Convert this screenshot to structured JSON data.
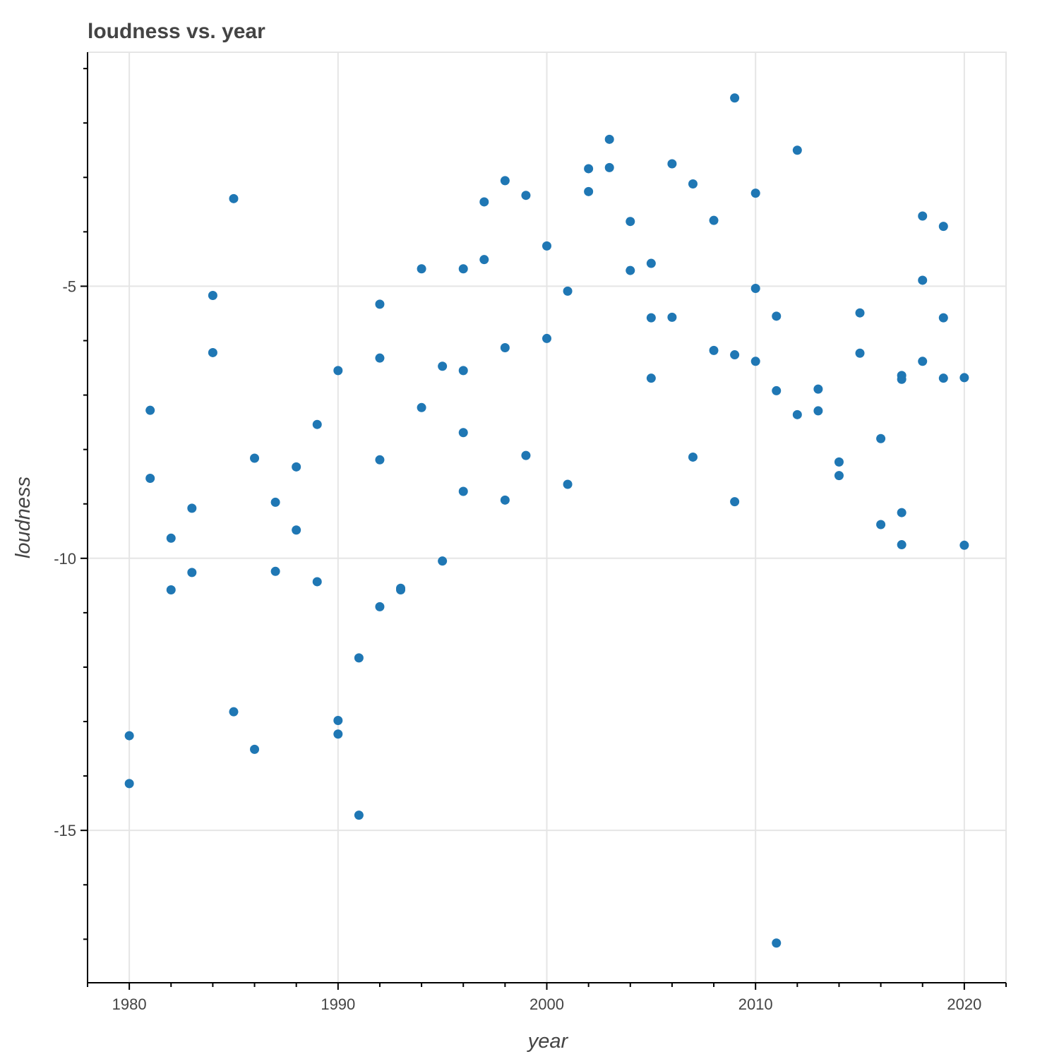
{
  "chart_data": {
    "type": "scatter",
    "title": "loudness vs. year",
    "xlabel": "year",
    "ylabel": "loudness",
    "xlim": [
      1978,
      2022
    ],
    "ylim": [
      -17.8,
      -0.7
    ],
    "x_ticks": [
      1980,
      1990,
      2000,
      2010,
      2020
    ],
    "y_ticks": [
      -5,
      -10,
      -15
    ],
    "grid": true,
    "legend": "none",
    "colors": {
      "point": "#1f77b4",
      "grid": "#e5e5e5",
      "axis": "#000000",
      "text": "#444444"
    },
    "points": [
      {
        "x": 1980,
        "y": -13.26
      },
      {
        "x": 1980,
        "y": -14.14
      },
      {
        "x": 1981,
        "y": -7.28
      },
      {
        "x": 1981,
        "y": -8.53
      },
      {
        "x": 1982,
        "y": -9.63
      },
      {
        "x": 1982,
        "y": -10.58
      },
      {
        "x": 1983,
        "y": -9.08
      },
      {
        "x": 1983,
        "y": -10.26
      },
      {
        "x": 1984,
        "y": -5.17
      },
      {
        "x": 1984,
        "y": -6.22
      },
      {
        "x": 1985,
        "y": -3.39
      },
      {
        "x": 1985,
        "y": -12.82
      },
      {
        "x": 1986,
        "y": -8.16
      },
      {
        "x": 1986,
        "y": -13.51
      },
      {
        "x": 1987,
        "y": -8.97
      },
      {
        "x": 1987,
        "y": -10.24
      },
      {
        "x": 1988,
        "y": -8.32
      },
      {
        "x": 1988,
        "y": -9.48
      },
      {
        "x": 1989,
        "y": -7.54
      },
      {
        "x": 1989,
        "y": -10.43
      },
      {
        "x": 1990,
        "y": -6.55
      },
      {
        "x": 1990,
        "y": -12.98
      },
      {
        "x": 1990,
        "y": -13.23
      },
      {
        "x": 1991,
        "y": -11.83
      },
      {
        "x": 1991,
        "y": -14.72
      },
      {
        "x": 1992,
        "y": -5.33
      },
      {
        "x": 1992,
        "y": -6.32
      },
      {
        "x": 1992,
        "y": -8.19
      },
      {
        "x": 1992,
        "y": -10.89
      },
      {
        "x": 1993,
        "y": -10.58
      },
      {
        "x": 1993,
        "y": -10.55
      },
      {
        "x": 1994,
        "y": -4.68
      },
      {
        "x": 1994,
        "y": -7.23
      },
      {
        "x": 1995,
        "y": -6.47
      },
      {
        "x": 1995,
        "y": -10.05
      },
      {
        "x": 1996,
        "y": -4.68
      },
      {
        "x": 1996,
        "y": -6.55
      },
      {
        "x": 1996,
        "y": -7.69
      },
      {
        "x": 1996,
        "y": -8.77
      },
      {
        "x": 1997,
        "y": -3.45
      },
      {
        "x": 1997,
        "y": -4.51
      },
      {
        "x": 1998,
        "y": -3.06
      },
      {
        "x": 1998,
        "y": -6.13
      },
      {
        "x": 1998,
        "y": -8.93
      },
      {
        "x": 1999,
        "y": -3.33
      },
      {
        "x": 1999,
        "y": -8.11
      },
      {
        "x": 2000,
        "y": -4.26
      },
      {
        "x": 2000,
        "y": -5.96
      },
      {
        "x": 2001,
        "y": -5.09
      },
      {
        "x": 2001,
        "y": -8.64
      },
      {
        "x": 2002,
        "y": -2.84
      },
      {
        "x": 2002,
        "y": -3.26
      },
      {
        "x": 2003,
        "y": -2.3
      },
      {
        "x": 2003,
        "y": -2.82
      },
      {
        "x": 2004,
        "y": -3.81
      },
      {
        "x": 2004,
        "y": -4.71
      },
      {
        "x": 2005,
        "y": -4.58
      },
      {
        "x": 2005,
        "y": -5.58
      },
      {
        "x": 2005,
        "y": -6.69
      },
      {
        "x": 2006,
        "y": -2.75
      },
      {
        "x": 2006,
        "y": -5.57
      },
      {
        "x": 2007,
        "y": -3.12
      },
      {
        "x": 2007,
        "y": -8.14
      },
      {
        "x": 2008,
        "y": -3.79
      },
      {
        "x": 2008,
        "y": -6.18
      },
      {
        "x": 2009,
        "y": -1.54
      },
      {
        "x": 2009,
        "y": -6.26
      },
      {
        "x": 2009,
        "y": -8.96
      },
      {
        "x": 2010,
        "y": -3.29
      },
      {
        "x": 2010,
        "y": -5.04
      },
      {
        "x": 2010,
        "y": -6.38
      },
      {
        "x": 2011,
        "y": -5.55
      },
      {
        "x": 2011,
        "y": -6.92
      },
      {
        "x": 2011,
        "y": -17.07
      },
      {
        "x": 2012,
        "y": -2.5
      },
      {
        "x": 2012,
        "y": -7.36
      },
      {
        "x": 2013,
        "y": -6.89
      },
      {
        "x": 2013,
        "y": -7.29
      },
      {
        "x": 2014,
        "y": -8.23
      },
      {
        "x": 2014,
        "y": -8.48
      },
      {
        "x": 2015,
        "y": -5.49
      },
      {
        "x": 2015,
        "y": -6.23
      },
      {
        "x": 2016,
        "y": -7.8
      },
      {
        "x": 2016,
        "y": -9.38
      },
      {
        "x": 2017,
        "y": -6.64
      },
      {
        "x": 2017,
        "y": -6.71
      },
      {
        "x": 2017,
        "y": -9.16
      },
      {
        "x": 2017,
        "y": -9.75
      },
      {
        "x": 2018,
        "y": -3.71
      },
      {
        "x": 2018,
        "y": -4.89
      },
      {
        "x": 2018,
        "y": -6.38
      },
      {
        "x": 2019,
        "y": -3.9
      },
      {
        "x": 2019,
        "y": -5.58
      },
      {
        "x": 2019,
        "y": -6.69
      },
      {
        "x": 2020,
        "y": -6.68
      },
      {
        "x": 2020,
        "y": -9.76
      }
    ]
  }
}
